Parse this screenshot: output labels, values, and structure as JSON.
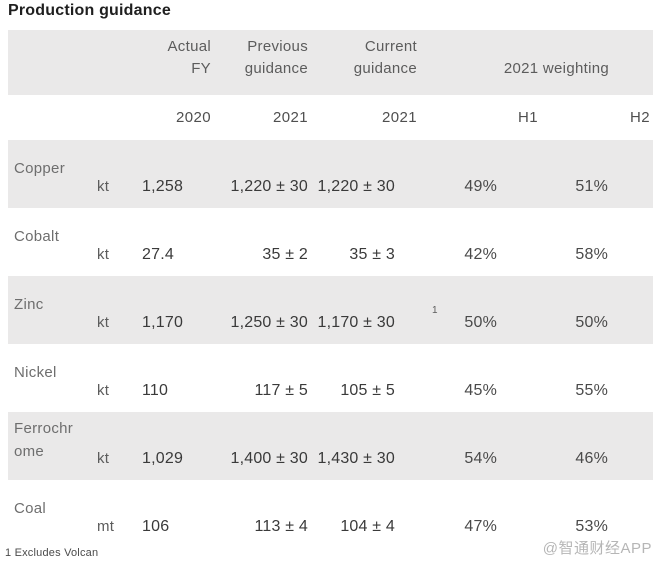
{
  "title": "Production guidance",
  "watermark": "@智通财经APP",
  "colors": {
    "row_band": "#EAE9E9",
    "value_text": "#3A3A3A",
    "label_text": "#6E6E6E",
    "watermark_text": "#B6B6B6"
  },
  "chart_data": {
    "type": "table",
    "title": "Production guidance",
    "column_headers": {
      "actual": [
        "Actual",
        "FY"
      ],
      "previous": [
        "Previous",
        "guidance"
      ],
      "current": [
        "Current",
        "guidance"
      ],
      "weighting_group": "2021 weighting"
    },
    "subheader": {
      "actual_year": "2020",
      "previous_year": "2021",
      "current_year": "2021",
      "h1": "H1",
      "h2": "H2"
    },
    "rows": [
      {
        "commodity": "Copper",
        "unit": "kt",
        "actual": "1,258",
        "previous": "1,220 ± 30",
        "current": "1,220 ± 30",
        "footnote_marker": "",
        "h1": "49%",
        "h2": "51%"
      },
      {
        "commodity": "Cobalt",
        "unit": "kt",
        "actual": "27.4",
        "previous": "35 ± 2",
        "current": "35 ± 3",
        "footnote_marker": "",
        "h1": "42%",
        "h2": "58%"
      },
      {
        "commodity": "Zinc",
        "unit": "kt",
        "actual": "1,170",
        "previous": "1,250 ± 30",
        "current": "1,170 ± 30",
        "footnote_marker": "1",
        "h1": "50%",
        "h2": "50%"
      },
      {
        "commodity": "Nickel",
        "unit": "kt",
        "actual": "110",
        "previous": "117 ± 5",
        "current": "105 ± 5",
        "footnote_marker": "",
        "h1": "45%",
        "h2": "55%"
      },
      {
        "commodity": "Ferrochrome",
        "unit": "kt",
        "actual": "1,029",
        "previous": "1,400 ± 30",
        "current": "1,430 ± 30",
        "footnote_marker": "",
        "h1": "54%",
        "h2": "46%"
      },
      {
        "commodity": "Coal",
        "unit": "mt",
        "actual": "106",
        "previous": "113 ± 4",
        "current": "104 ± 4",
        "footnote_marker": "",
        "h1": "47%",
        "h2": "53%"
      }
    ],
    "footnote": "1 Excludes Volcan"
  }
}
